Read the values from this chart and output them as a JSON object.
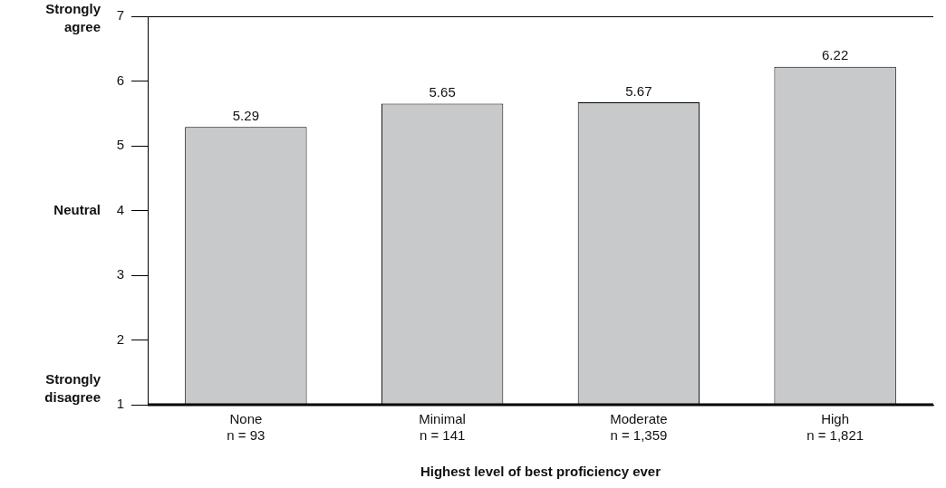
{
  "chart_data": {
    "type": "bar",
    "xlabel": "Highest level of best proficiency ever",
    "categories": [
      "None\nn = 93",
      "Minimal\nn = 141",
      "Moderate\nn = 1,359",
      "High\nn = 1,821"
    ],
    "values": [
      5.29,
      5.65,
      5.67,
      6.22
    ],
    "color": "#c8c9cb",
    "data_labels": true,
    "ylim": [
      1,
      7
    ],
    "yticks": [
      1,
      2,
      3,
      4,
      5,
      6,
      7
    ],
    "grid": false,
    "legend": false,
    "annotations": [
      "Strongly agree",
      "Neutral",
      "Strongly disagree"
    ]
  }
}
